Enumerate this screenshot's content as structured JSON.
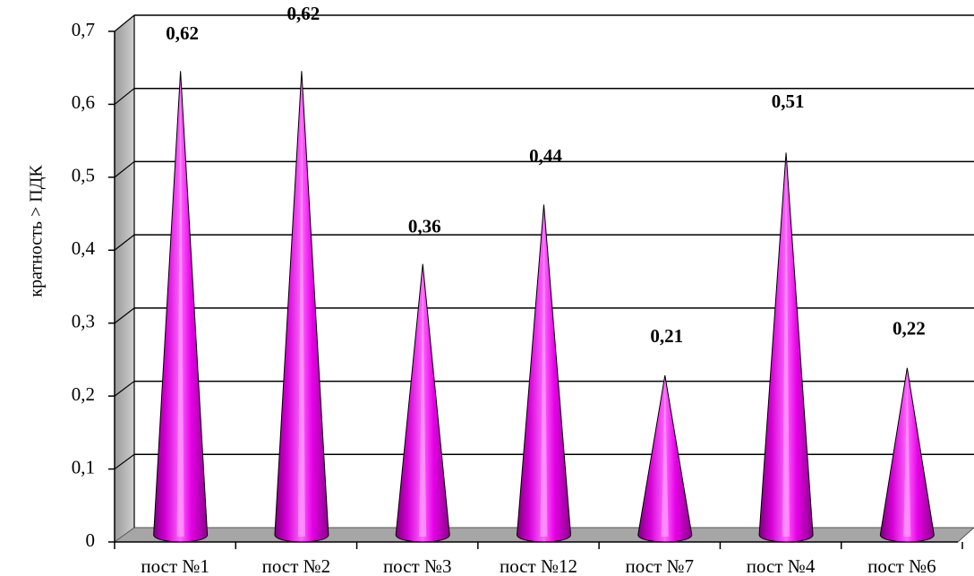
{
  "chart_data": {
    "type": "bar",
    "shape": "cone",
    "categories": [
      "пост №1",
      "пост №2",
      "пост №3",
      "пост №12",
      "пост №7",
      "пост №4",
      "пост №6"
    ],
    "values": [
      0.62,
      0.62,
      0.36,
      0.44,
      0.21,
      0.51,
      0.22
    ],
    "data_labels": [
      "0,62",
      "0,62",
      "0,36",
      "0,44",
      "0,21",
      "0,51",
      "0,22"
    ],
    "title": "",
    "xlabel": "",
    "ylabel": "кратность > ПДК",
    "ylim": [
      0,
      0.7
    ],
    "yticks": [
      0,
      0.1,
      0.2,
      0.3,
      0.4,
      0.5,
      0.6,
      0.7
    ],
    "ytick_labels": [
      "0",
      "0,1",
      "0,2",
      "0,3",
      "0,4",
      "0,5",
      "0,6",
      "0,7"
    ],
    "grid": true,
    "legend": "none",
    "colors": {
      "cone": "#e600e6",
      "cone_highlight": "#ffb3ff",
      "cone_shadow": "#7a007a",
      "back_wall": "#ffffff",
      "side_wall": "#c0c0c0",
      "floor": "#a6a6a6",
      "gridline": "#000000"
    }
  }
}
